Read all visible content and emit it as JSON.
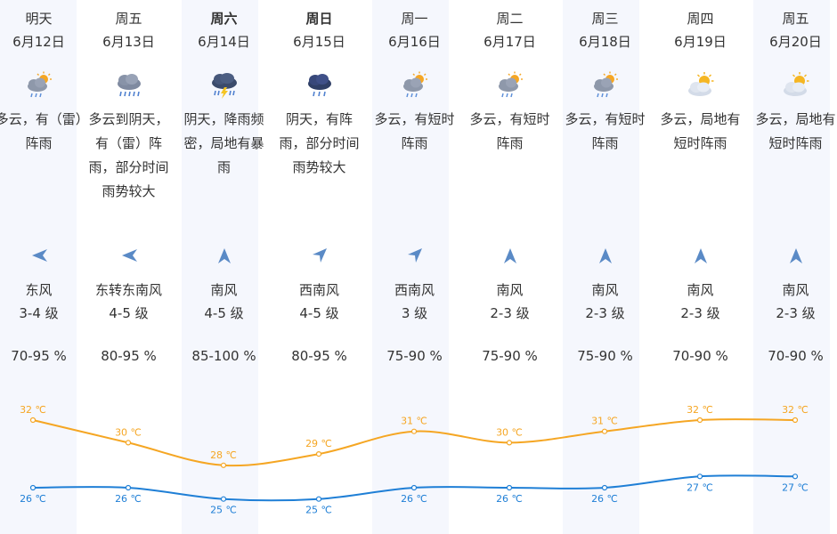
{
  "colors": {
    "high": "#f5a623",
    "low": "#1f7fd6",
    "arrow": "#5a8ac6",
    "column_bg": "#f5f7fd"
  },
  "days": [
    {
      "day": "明天",
      "date": "6月12日",
      "icon": "partly-cloudy-rain-icon",
      "desc": "多云，有（雷）阵雨",
      "wind_dir": "east",
      "wind": "东风",
      "level": "3-4 级",
      "humidity": "70-95 %",
      "high": "32 ℃",
      "low": "26 ℃"
    },
    {
      "day": "周五",
      "date": "6月13日",
      "icon": "cloudy-rain-icon",
      "desc": "多云到阴天，有（雷）阵雨，部分时间雨势较大",
      "wind_dir": "east",
      "wind": "东转东南风",
      "level": "4-5 级",
      "humidity": "80-95 %",
      "high": "30 ℃",
      "low": "26 ℃"
    },
    {
      "day": "周六",
      "date": "6月14日",
      "icon": "thunderstorm-icon",
      "desc": "阴天，降雨频密，局地有暴雨",
      "wind_dir": "south",
      "wind": "南风",
      "level": "4-5 级",
      "humidity": "85-100 %",
      "high": "28 ℃",
      "low": "25 ℃"
    },
    {
      "day": "周日",
      "date": "6月15日",
      "icon": "overcast-rain-icon",
      "desc": "阴天，有阵雨，部分时间雨势较大",
      "wind_dir": "southwest",
      "wind": "西南风",
      "level": "4-5 级",
      "humidity": "80-95 %",
      "high": "29 ℃",
      "low": "25 ℃"
    },
    {
      "day": "周一",
      "date": "6月16日",
      "icon": "partly-cloudy-rain-icon",
      "desc": "多云，有短时阵雨",
      "wind_dir": "southwest",
      "wind": "西南风",
      "level": "3 级",
      "humidity": "75-90 %",
      "high": "31 ℃",
      "low": "26 ℃"
    },
    {
      "day": "周二",
      "date": "6月17日",
      "icon": "partly-cloudy-rain-icon",
      "desc": "多云，有短时阵雨",
      "wind_dir": "south",
      "wind": "南风",
      "level": "2-3 级",
      "humidity": "75-90 %",
      "high": "30 ℃",
      "low": "26 ℃"
    },
    {
      "day": "周三",
      "date": "6月18日",
      "icon": "partly-cloudy-rain-icon",
      "desc": "多云，有短时阵雨",
      "wind_dir": "south",
      "wind": "南风",
      "level": "2-3 级",
      "humidity": "75-90 %",
      "high": "31 ℃",
      "low": "26 ℃"
    },
    {
      "day": "周四",
      "date": "6月19日",
      "icon": "partly-cloudy-sun-icon",
      "desc": "多云，局地有短时阵雨",
      "wind_dir": "south",
      "wind": "南风",
      "level": "2-3 级",
      "humidity": "70-90 %",
      "high": "32 ℃",
      "low": "27 ℃"
    },
    {
      "day": "周五",
      "date": "6月20日",
      "icon": "partly-cloudy-sun-icon",
      "desc": "多云，局地有短时阵雨",
      "wind_dir": "south",
      "wind": "南风",
      "level": "2-3 级",
      "humidity": "70-90 %",
      "high": "32 ℃",
      "low": "27 ℃"
    }
  ],
  "chart_data": {
    "type": "line",
    "categories": [
      "6月12日",
      "6月13日",
      "6月14日",
      "6月15日",
      "6月16日",
      "6月17日",
      "6月18日",
      "6月19日",
      "6月20日"
    ],
    "unit": "℃",
    "series": [
      {
        "key": "high",
        "values": [
          32,
          30,
          28,
          29,
          31,
          30,
          31,
          32,
          32
        ]
      },
      {
        "key": "low",
        "values": [
          26,
          26,
          25,
          25,
          26,
          26,
          26,
          27,
          27
        ]
      }
    ],
    "grid": false,
    "legend": "none"
  }
}
